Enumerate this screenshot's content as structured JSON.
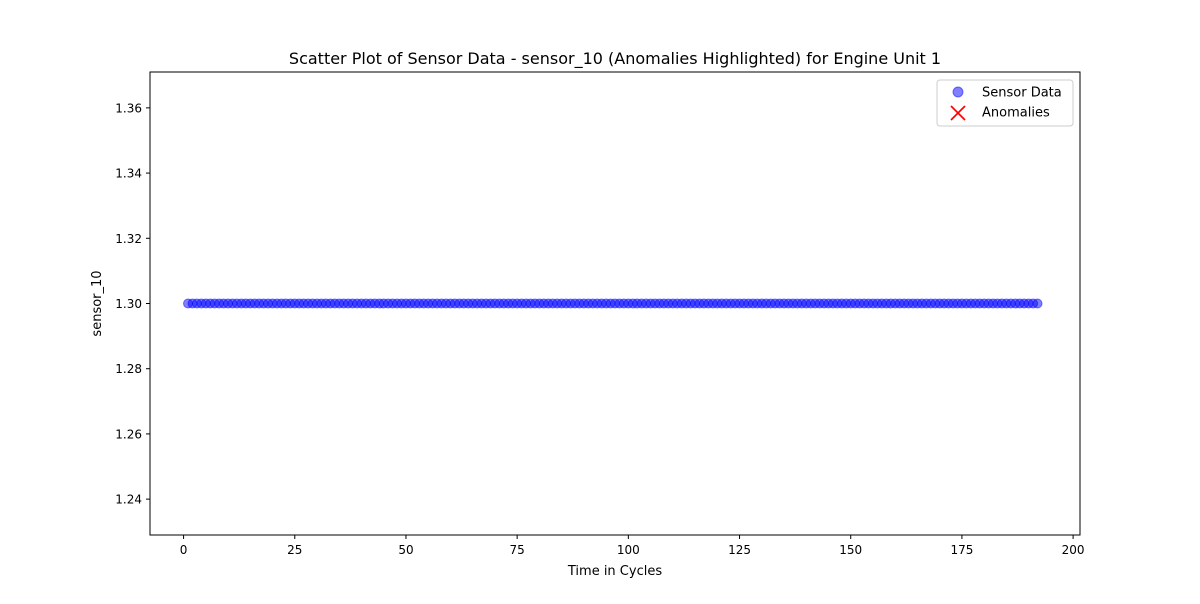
{
  "chart_data": {
    "type": "scatter",
    "title": "Scatter Plot of Sensor Data - sensor_10 (Anomalies Highlighted) for Engine Unit 1",
    "xlabel": "Time in Cycles",
    "ylabel": "sensor_10",
    "xlim": [
      -7.55,
      201.55
    ],
    "ylim": [
      1.229,
      1.371
    ],
    "x_ticks": [
      0,
      25,
      50,
      75,
      100,
      125,
      150,
      175,
      200
    ],
    "y_ticks": [
      1.24,
      1.26,
      1.28,
      1.3,
      1.32,
      1.34,
      1.36
    ],
    "x_tick_labels": [
      "0",
      "25",
      "50",
      "75",
      "100",
      "125",
      "150",
      "175",
      "200"
    ],
    "y_tick_labels": [
      "1.24",
      "1.26",
      "1.28",
      "1.30",
      "1.32",
      "1.34",
      "1.36"
    ],
    "grid": false,
    "legend_position": "top-right",
    "series": [
      {
        "name": "Sensor Data",
        "marker": "circle",
        "color": "#0000ff",
        "alpha": 0.5,
        "x_start": 1,
        "x_end": 192,
        "x_step": 1,
        "y_constant": 1.3
      },
      {
        "name": "Anomalies",
        "marker": "x",
        "color": "#ff0000",
        "x": [],
        "y": []
      }
    ]
  }
}
